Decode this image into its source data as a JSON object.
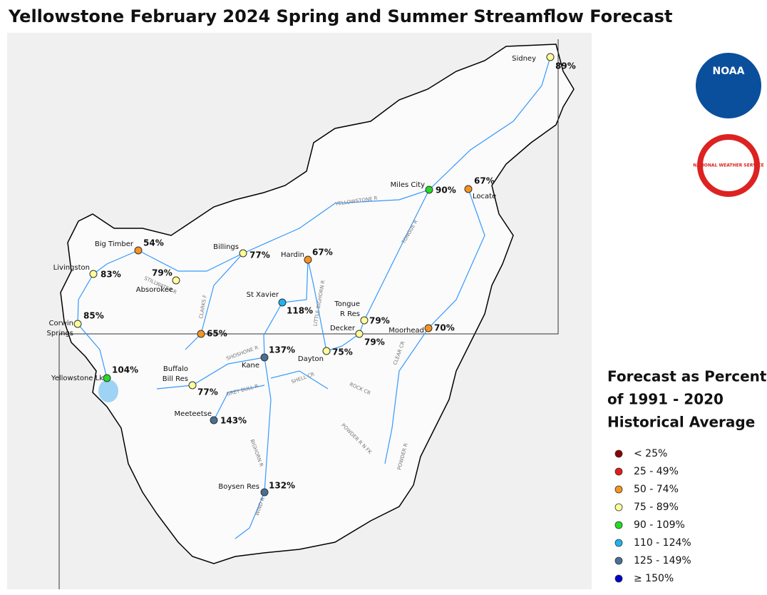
{
  "title": "Yellowstone February 2024 Spring and Summer Streamflow Forecast",
  "logos": [
    "NOAA",
    "NATIONAL WEATHER SERVICE"
  ],
  "stations": [
    {
      "name": [
        "Sidney"
      ],
      "percent": "89%",
      "color": "#ffff99"
    },
    {
      "name": [
        "Miles City"
      ],
      "percent": "90%",
      "color": "#22dd22"
    },
    {
      "name": [
        "Locate"
      ],
      "percent": "67%",
      "color": "#f7931e"
    },
    {
      "name": [
        "Big Timber"
      ],
      "percent": "54%",
      "color": "#f7931e"
    },
    {
      "name": [
        "Billings"
      ],
      "percent": "77%",
      "color": "#ffff99"
    },
    {
      "name": [
        "Hardin"
      ],
      "percent": "67%",
      "color": "#f7931e"
    },
    {
      "name": [
        "Livingston"
      ],
      "percent": "83%",
      "color": "#ffff99"
    },
    {
      "name": [
        "Absorokee"
      ],
      "percent": "79%",
      "color": "#ffff99"
    },
    {
      "name": [
        "St Xavier"
      ],
      "percent": "118%",
      "color": "#1eb4f0"
    },
    {
      "name": [
        "Corwin",
        "Springs"
      ],
      "percent": "85%",
      "color": "#ffff99"
    },
    {
      "name": [
        "Tongue",
        "R Res"
      ],
      "percent": "79%",
      "color": "#ffff99"
    },
    {
      "name": [
        "Decker"
      ],
      "percent": "79%",
      "color": "#ffff99"
    },
    {
      "name": [
        "Moorhead"
      ],
      "percent": "70%",
      "color": "#f7931e"
    },
    {
      "percent": "65%",
      "color": "#f7931e"
    },
    {
      "name": [
        "Dayton"
      ],
      "percent": "75%",
      "color": "#ffff99"
    },
    {
      "name": [
        "Kane"
      ],
      "percent": "137%",
      "color": "#4a6f96"
    },
    {
      "name": [
        "Yellowstone Lk"
      ],
      "percent": "104%",
      "color": "#22dd22"
    },
    {
      "name": [
        "Buffalo",
        "Bill Res"
      ],
      "percent": "77%",
      "color": "#ffff99"
    },
    {
      "name": [
        "Meeteetse"
      ],
      "percent": "143%",
      "color": "#4a6f96"
    },
    {
      "name": [
        "Boysen Res"
      ],
      "percent": "132%",
      "color": "#4a6f96"
    }
  ],
  "rivers": [
    "YELLOWSTONE R",
    "TONGUE R",
    "STILLWATER R",
    "CLARKS F",
    "LITTLE BIGHORN R",
    "SHOSHONE R",
    "SHELL CR",
    "GREY BULL R",
    "BIGHORN R",
    "WIND R",
    "ROCK CR",
    "CLEAR CR",
    "POWDER R N FK",
    "POWDER R"
  ],
  "legend": {
    "title": [
      "Forecast as Percent",
      "of 1991 - 2020",
      "Historical Average"
    ],
    "items": [
      {
        "label": "< 25%",
        "color": "#8b0000"
      },
      {
        "label": "25 - 49%",
        "color": "#e41a1c"
      },
      {
        "label": "50 - 74%",
        "color": "#f7931e"
      },
      {
        "label": "75 - 89%",
        "color": "#ffff99"
      },
      {
        "label": "90 - 109%",
        "color": "#22dd22"
      },
      {
        "label": "110 - 124%",
        "color": "#1eb4f0"
      },
      {
        "label": "125 - 149%",
        "color": "#4a6f96"
      },
      {
        "label": "≥ 150%",
        "color": "#0000cc"
      }
    ]
  }
}
